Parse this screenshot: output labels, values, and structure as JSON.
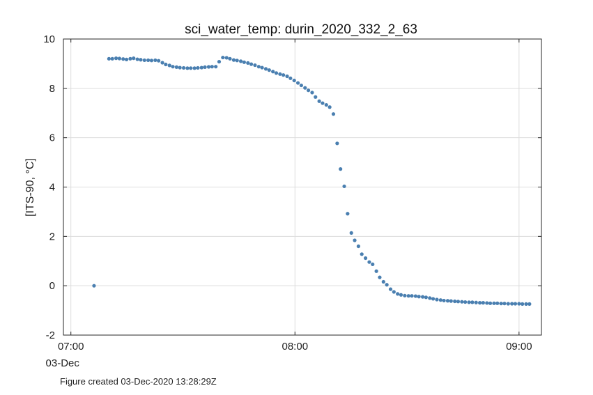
{
  "footnote": "Figure created 03-Dec-2020 13:28:29Z",
  "chart_data": {
    "type": "scatter",
    "title": "sci_water_temp: durin_2020_332_2_63",
    "xlabel": "",
    "ylabel": "[ITS-90, °C]",
    "xlim_minutes": [
      418,
      546
    ],
    "ylim": [
      -2,
      10
    ],
    "grid": true,
    "marker_color": "#4a7fb0",
    "y_ticks": [
      -2,
      0,
      2,
      4,
      6,
      8,
      10
    ],
    "x_ticks": [
      {
        "minutes": 420,
        "label": "07:00",
        "sublabel": "03-Dec"
      },
      {
        "minutes": 480,
        "label": "08:00",
        "sublabel": ""
      },
      {
        "minutes": 540,
        "label": "09:00",
        "sublabel": ""
      }
    ],
    "x_unit": "minutes after 00:00 on 03-Dec",
    "series": [
      {
        "x": [
          426.2,
          430.2,
          431.1,
          432.1,
          433.0,
          434.0,
          434.9,
          435.9,
          436.8,
          437.8,
          438.7,
          439.7,
          440.7,
          441.6,
          442.6,
          443.5,
          444.5,
          445.4,
          446.4,
          447.3,
          448.3,
          449.2,
          450.2,
          451.2,
          452.1,
          453.1,
          454.0,
          455.0,
          455.9,
          456.9,
          457.8,
          458.8,
          459.7,
          460.7,
          461.7,
          462.6,
          463.6,
          464.5,
          465.5,
          466.4,
          467.4,
          468.3,
          469.3,
          470.3,
          471.2,
          472.2,
          473.1,
          474.1,
          475.0,
          476.0,
          476.9,
          477.9,
          478.8,
          479.8,
          480.8,
          481.7,
          482.7,
          483.6,
          484.6,
          485.5,
          486.5,
          487.4,
          488.4,
          489.3,
          490.3,
          491.3,
          492.2,
          493.2,
          494.1,
          495.1,
          496.0,
          497.0,
          497.9,
          498.9,
          499.9,
          500.8,
          501.8,
          502.7,
          503.7,
          504.6,
          505.6,
          506.5,
          507.5,
          508.4,
          509.4,
          510.4,
          511.3,
          512.3,
          513.2,
          514.2,
          515.1,
          516.1,
          517.0,
          518.0,
          519.0,
          519.9,
          520.9,
          521.8,
          522.8,
          523.7,
          524.7,
          525.6,
          526.6,
          527.5,
          528.5,
          529.5,
          530.4,
          531.4,
          532.3,
          533.3,
          534.2,
          535.2,
          536.1,
          537.1,
          538.1,
          539.0,
          540.0,
          540.9,
          541.9,
          542.8
        ],
        "y": [
          0.0,
          9.2,
          9.2,
          9.22,
          9.21,
          9.19,
          9.17,
          9.2,
          9.22,
          9.18,
          9.16,
          9.14,
          9.14,
          9.13,
          9.14,
          9.12,
          9.04,
          8.97,
          8.93,
          8.88,
          8.86,
          8.84,
          8.83,
          8.82,
          8.82,
          8.82,
          8.83,
          8.84,
          8.86,
          8.87,
          8.88,
          8.88,
          9.08,
          9.25,
          9.24,
          9.2,
          9.15,
          9.13,
          9.1,
          9.06,
          9.03,
          8.98,
          8.94,
          8.88,
          8.84,
          8.79,
          8.74,
          8.68,
          8.62,
          8.58,
          8.54,
          8.49,
          8.41,
          8.32,
          8.22,
          8.12,
          8.02,
          7.92,
          7.83,
          7.65,
          7.48,
          7.4,
          7.33,
          7.24,
          6.96,
          5.77,
          4.73,
          4.03,
          2.92,
          2.14,
          1.84,
          1.6,
          1.28,
          1.12,
          0.96,
          0.87,
          0.59,
          0.34,
          0.16,
          0.04,
          -0.14,
          -0.25,
          -0.33,
          -0.37,
          -0.4,
          -0.41,
          -0.41,
          -0.42,
          -0.44,
          -0.45,
          -0.47,
          -0.5,
          -0.53,
          -0.56,
          -0.58,
          -0.6,
          -0.61,
          -0.62,
          -0.63,
          -0.64,
          -0.65,
          -0.66,
          -0.67,
          -0.67,
          -0.68,
          -0.69,
          -0.69,
          -0.7,
          -0.71,
          -0.71,
          -0.71,
          -0.72,
          -0.72,
          -0.73,
          -0.73,
          -0.73,
          -0.73,
          -0.74,
          -0.74,
          -0.74
        ]
      }
    ]
  }
}
